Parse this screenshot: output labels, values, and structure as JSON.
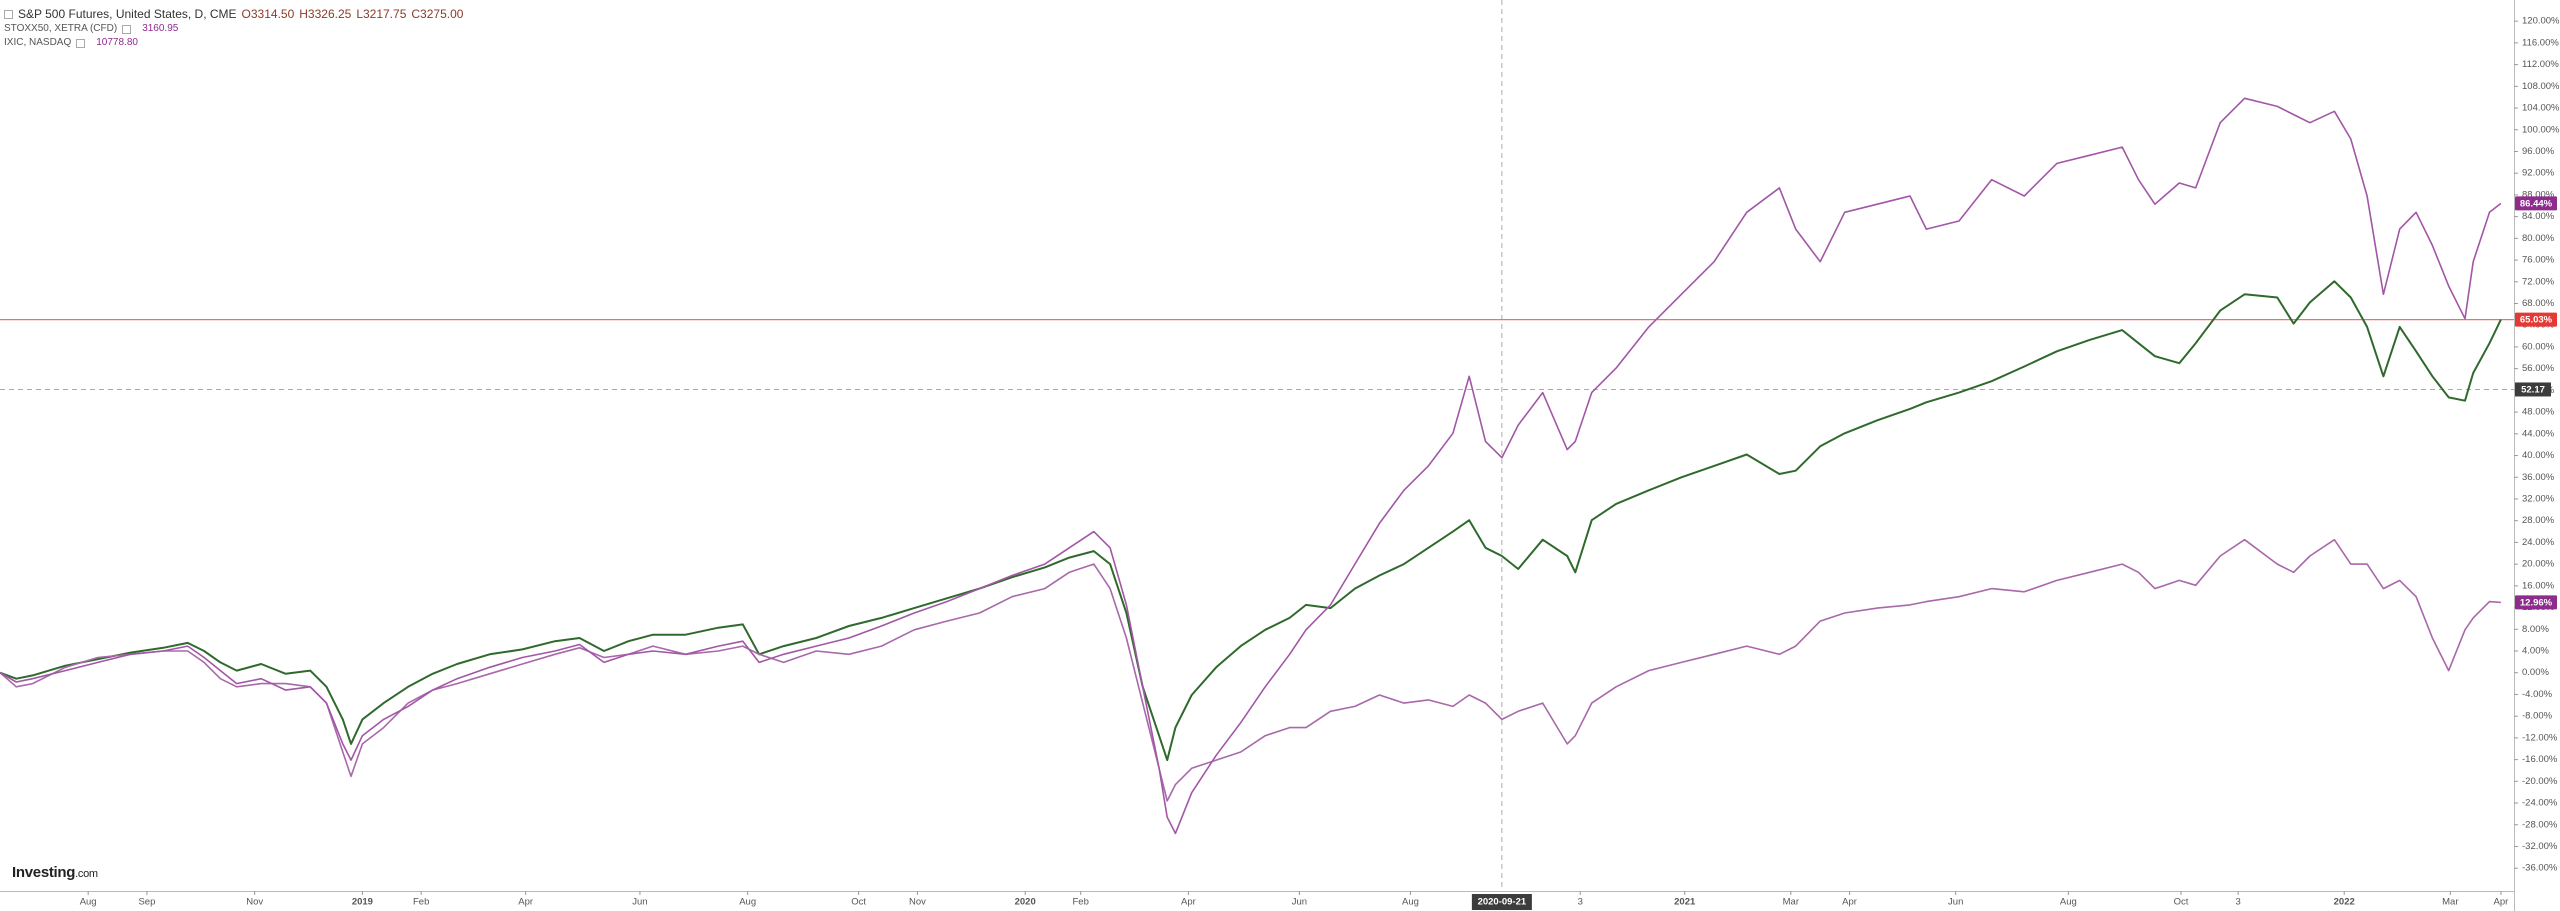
{
  "chart_data": {
    "type": "line",
    "title": "S&P 500 Futures, United States, D, CME",
    "ohlc": [
      "O3314.50",
      "H3326.25",
      "L3217.75",
      "C3275.00"
    ],
    "logo": [
      "Investing",
      ".com"
    ],
    "x": [
      0,
      10,
      20,
      40,
      60,
      80,
      100,
      115,
      125,
      135,
      145,
      160,
      175,
      190,
      200,
      210,
      215,
      222,
      235,
      250,
      265,
      280,
      300,
      320,
      340,
      355,
      370,
      385,
      400,
      420,
      440,
      455,
      465,
      480,
      500,
      520,
      540,
      560,
      580,
      600,
      620,
      640,
      655,
      670,
      680,
      690,
      700,
      710,
      715,
      720,
      730,
      745,
      760,
      775,
      790,
      800,
      815,
      830,
      845,
      860,
      875,
      890,
      900,
      910,
      920,
      930,
      945,
      960,
      965,
      975,
      990,
      1010,
      1030,
      1050,
      1070,
      1090,
      1100,
      1115,
      1130,
      1150,
      1170,
      1180,
      1200,
      1220,
      1240,
      1260,
      1280,
      1300,
      1310,
      1320,
      1335,
      1345,
      1360,
      1375,
      1395,
      1405,
      1415,
      1430,
      1440,
      1450,
      1460,
      1470,
      1480,
      1490,
      1500,
      1510,
      1515,
      1525,
      1532
    ],
    "series": [
      {
        "name": "S&P 500 Futures, United States, D, CME",
        "color": "#2f6a2c",
        "last_value": 65.03,
        "last_label": "65.03%",
        "label_color": "#e53935",
        "values": [
          0,
          -1.1,
          -0.5,
          1.3,
          2.5,
          3.7,
          4.6,
          5.5,
          4.0,
          1.9,
          0.4,
          1.6,
          -0.2,
          0.4,
          -2.6,
          -8.6,
          -13.1,
          -8.6,
          -5.6,
          -2.6,
          -0.2,
          1.6,
          3.4,
          4.3,
          5.8,
          6.4,
          4.0,
          5.8,
          7.0,
          7.0,
          8.3,
          8.9,
          3.4,
          4.9,
          6.4,
          8.6,
          10.1,
          11.9,
          13.7,
          15.5,
          17.6,
          19.4,
          21.2,
          22.4,
          20.0,
          11.0,
          -2.6,
          -11.6,
          -16.1,
          -10.1,
          -4.1,
          1.0,
          4.9,
          7.9,
          10.1,
          12.5,
          11.9,
          15.5,
          17.9,
          20.0,
          23.0,
          26.0,
          28.1,
          23.0,
          21.5,
          19.1,
          24.5,
          21.5,
          18.5,
          28.1,
          31.1,
          33.6,
          36.0,
          38.1,
          40.2,
          36.6,
          37.2,
          41.7,
          44.1,
          46.5,
          48.6,
          49.8,
          51.6,
          53.7,
          56.4,
          59.2,
          61.3,
          63.1,
          60.7,
          58.3,
          57.0,
          60.7,
          66.7,
          69.7,
          69.1,
          64.3,
          68.2,
          72.1,
          69.1,
          63.7,
          54.6,
          63.7,
          59.2,
          54.6,
          50.7,
          50.1,
          55.2,
          60.7,
          65.03
        ]
      },
      {
        "name": "STOXX50, XETRA (CFD)",
        "color": "#a868a9",
        "quote": 3160.95,
        "last_value": 12.96,
        "last_label": "12.96%",
        "label_color": "#8e2c8e",
        "values": [
          0,
          -2.6,
          -2.0,
          1.0,
          2.8,
          3.4,
          4.0,
          4.0,
          1.9,
          -1.1,
          -2.6,
          -2.0,
          -2.0,
          -2.6,
          -5.6,
          -14.6,
          -19.1,
          -13.1,
          -10.1,
          -5.6,
          -3.2,
          -2.0,
          -0.2,
          1.6,
          3.4,
          4.6,
          2.8,
          3.4,
          4.9,
          3.4,
          4.0,
          4.9,
          3.4,
          1.9,
          4.0,
          3.4,
          4.9,
          7.9,
          9.5,
          11.0,
          14.0,
          15.5,
          18.5,
          20.0,
          15.5,
          6.4,
          -5.6,
          -17.6,
          -23.6,
          -20.6,
          -17.6,
          -16.1,
          -14.6,
          -11.6,
          -10.1,
          -10.1,
          -7.1,
          -6.2,
          -4.1,
          -5.6,
          -5.0,
          -6.2,
          -4.1,
          -5.6,
          -8.6,
          -7.1,
          -5.6,
          -13.1,
          -11.6,
          -5.6,
          -2.6,
          0.4,
          1.9,
          3.4,
          4.9,
          3.4,
          4.9,
          9.5,
          11.0,
          11.9,
          12.5,
          13.1,
          14.0,
          15.5,
          14.9,
          17.0,
          18.5,
          20.0,
          18.5,
          15.5,
          17.0,
          16.1,
          21.5,
          24.5,
          20.0,
          18.5,
          21.5,
          24.5,
          20.0,
          20.0,
          15.5,
          17.0,
          14.0,
          6.4,
          0.4,
          7.9,
          10.1,
          13.1,
          12.96
        ]
      },
      {
        "name": "IXIC, NASDAQ",
        "color": "#a157a6",
        "quote": 10778.8,
        "quote_label": "10778.80",
        "last_value": 86.44,
        "last_label": "86.44%",
        "label_color": "#8e2c8e",
        "values": [
          0,
          -1.7,
          -1.1,
          0.4,
          1.9,
          3.4,
          4.0,
          4.9,
          2.8,
          0.4,
          -2.0,
          -1.1,
          -3.2,
          -2.6,
          -5.6,
          -13.1,
          -16.1,
          -11.6,
          -8.6,
          -6.2,
          -3.2,
          -1.1,
          1.0,
          2.8,
          4.0,
          5.2,
          1.9,
          3.4,
          4.0,
          3.4,
          4.9,
          5.8,
          1.9,
          3.4,
          4.9,
          6.4,
          8.6,
          11.0,
          13.1,
          15.5,
          17.9,
          20.0,
          23.0,
          26.0,
          23.0,
          12.5,
          -2.6,
          -17.6,
          -26.6,
          -29.6,
          -22.1,
          -15.2,
          -9.2,
          -2.6,
          3.4,
          7.9,
          12.5,
          20.0,
          27.5,
          33.6,
          38.1,
          44.1,
          54.6,
          42.6,
          39.6,
          45.6,
          51.6,
          41.1,
          42.6,
          51.6,
          56.1,
          63.7,
          69.7,
          75.7,
          84.8,
          89.3,
          81.7,
          75.7,
          84.8,
          86.3,
          87.8,
          81.7,
          83.2,
          90.8,
          87.8,
          93.8,
          95.3,
          96.8,
          90.8,
          86.3,
          90.2,
          89.3,
          101.3,
          105.8,
          104.3,
          102.8,
          101.3,
          103.4,
          98.3,
          87.8,
          69.7,
          81.7,
          84.8,
          78.7,
          71.2,
          65.2,
          75.7,
          84.8,
          86.44
        ]
      }
    ],
    "price_line_color": "#ef7070",
    "crosshair": {
      "x": 920,
      "x_label": "2020-09-21",
      "y": 52.17
    },
    "xlim": [
      0,
      1540
    ],
    "ylim": [
      -40.2,
      123.9
    ],
    "xticks": [
      {
        "value": 54,
        "label": "Aug"
      },
      {
        "value": 90,
        "label": "Sep"
      },
      {
        "value": 156,
        "label": "Nov"
      },
      {
        "value": 222,
        "label": "2019"
      },
      {
        "value": 258,
        "label": "Feb"
      },
      {
        "value": 322,
        "label": "Apr"
      },
      {
        "value": 392,
        "label": "Jun"
      },
      {
        "value": 458,
        "label": "Aug"
      },
      {
        "value": 526,
        "label": "Oct"
      },
      {
        "value": 562,
        "label": "Nov"
      },
      {
        "value": 628,
        "label": "2020"
      },
      {
        "value": 662,
        "label": "Feb"
      },
      {
        "value": 728,
        "label": "Apr"
      },
      {
        "value": 796,
        "label": "Jun"
      },
      {
        "value": 864,
        "label": "Aug"
      },
      {
        "value": 968,
        "label": "3"
      },
      {
        "value": 1032,
        "label": "2021"
      },
      {
        "value": 1097,
        "label": "Mar"
      },
      {
        "value": 1133,
        "label": "Apr"
      },
      {
        "value": 1198,
        "label": "Jun"
      },
      {
        "value": 1267,
        "label": "Aug"
      },
      {
        "value": 1336,
        "label": "Oct"
      },
      {
        "value": 1371,
        "label": "3"
      },
      {
        "value": 1436,
        "label": "2022"
      },
      {
        "value": 1501,
        "label": "Mar"
      },
      {
        "value": 1532,
        "label": "Apr"
      }
    ],
    "yticks": [
      {
        "value": 120,
        "label": "120.00%"
      },
      {
        "value": 116,
        "label": "116.00%"
      },
      {
        "value": 112,
        "label": "112.00%"
      },
      {
        "value": 108,
        "label": "108.00%"
      },
      {
        "value": 104,
        "label": "104.00%"
      },
      {
        "value": 100,
        "label": "100.00%"
      },
      {
        "value": 96,
        "label": "96.00%"
      },
      {
        "value": 92,
        "label": "92.00%"
      },
      {
        "value": 88,
        "label": "88.00%"
      },
      {
        "value": 84,
        "label": "84.00%"
      },
      {
        "value": 80,
        "label": "80.00%"
      },
      {
        "value": 76,
        "label": "76.00%"
      },
      {
        "value": 72,
        "label": "72.00%"
      },
      {
        "value": 68,
        "label": "68.00%"
      },
      {
        "value": 64,
        "label": "64.00%"
      },
      {
        "value": 60,
        "label": "60.00%"
      },
      {
        "value": 56,
        "label": "56.00%"
      },
      {
        "value": 52,
        "label": "52.00%"
      },
      {
        "value": 48,
        "label": "48.00%"
      },
      {
        "value": 44,
        "label": "44.00%"
      },
      {
        "value": 40,
        "label": "40.00%"
      },
      {
        "value": 36,
        "label": "36.00%"
      },
      {
        "value": 32,
        "label": "32.00%"
      },
      {
        "value": 28,
        "label": "28.00%"
      },
      {
        "value": 24,
        "label": "24.00%"
      },
      {
        "value": 20,
        "label": "20.00%"
      },
      {
        "value": 16,
        "label": "16.00%"
      },
      {
        "value": 12,
        "label": "12.00%"
      },
      {
        "value": 8,
        "label": "8.00%"
      },
      {
        "value": 4,
        "label": "4.00%"
      },
      {
        "value": 0,
        "label": "0.00%"
      },
      {
        "value": -4,
        "label": "-4.00%"
      },
      {
        "value": -8,
        "label": "-8.00%"
      },
      {
        "value": -12,
        "label": "-12.00%"
      },
      {
        "value": -16,
        "label": "-16.00%"
      },
      {
        "value": -20,
        "label": "-20.00%"
      },
      {
        "value": -24,
        "label": "-24.00%"
      },
      {
        "value": -28,
        "label": "-28.00%"
      },
      {
        "value": -32,
        "label": "-32.00%"
      },
      {
        "value": -36,
        "label": "-36.00%"
      }
    ],
    "grid": false
  }
}
